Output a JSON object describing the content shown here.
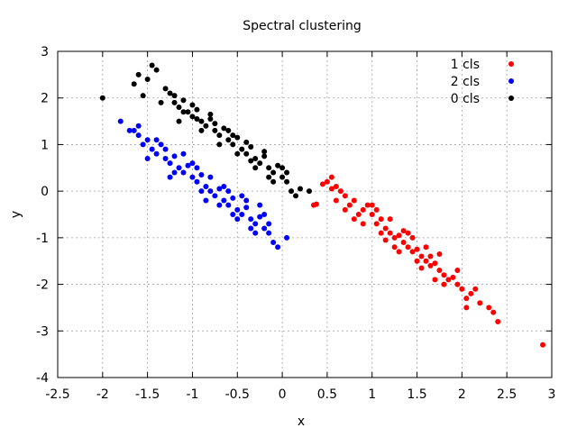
{
  "chart_data": {
    "type": "scatter",
    "title": "Spectral clustering",
    "xlabel": "x",
    "ylabel": "y",
    "xlim": [
      -2.5,
      3
    ],
    "ylim": [
      -4,
      3
    ],
    "xticks": [
      -2.5,
      -2,
      -1.5,
      -1,
      -0.5,
      0,
      0.5,
      1,
      1.5,
      2,
      2.5,
      3
    ],
    "xtick_labels": [
      "-2.5",
      "-2",
      "-1.5",
      "-1",
      "-0.5",
      "0",
      "0.5",
      "1",
      "1.5",
      "2",
      "2.5",
      "3"
    ],
    "yticks": [
      -4,
      -3,
      -2,
      -1,
      0,
      1,
      2,
      3
    ],
    "ytick_labels": [
      "-4",
      "-3",
      "-2",
      "-1",
      "0",
      "1",
      "2",
      "3"
    ],
    "grid": true,
    "legend_position": "top-right",
    "series": [
      {
        "name": "1 cls",
        "color": "#ff0000",
        "points": [
          [
            0.35,
            -0.3
          ],
          [
            0.38,
            -0.28
          ],
          [
            0.5,
            0.2
          ],
          [
            0.55,
            0.3
          ],
          [
            0.6,
            0.1
          ],
          [
            0.65,
            0.0
          ],
          [
            0.7,
            -0.1
          ],
          [
            0.75,
            -0.3
          ],
          [
            0.8,
            -0.2
          ],
          [
            0.85,
            -0.5
          ],
          [
            0.9,
            -0.4
          ],
          [
            0.95,
            -0.3
          ],
          [
            1.0,
            -0.5
          ],
          [
            1.05,
            -0.7
          ],
          [
            1.1,
            -0.6
          ],
          [
            1.15,
            -0.8
          ],
          [
            1.2,
            -0.9
          ],
          [
            1.25,
            -1.0
          ],
          [
            1.3,
            -0.95
          ],
          [
            1.35,
            -1.1
          ],
          [
            1.4,
            -1.2
          ],
          [
            1.45,
            -1.3
          ],
          [
            1.5,
            -1.25
          ],
          [
            1.55,
            -1.4
          ],
          [
            1.6,
            -1.5
          ],
          [
            1.65,
            -1.6
          ],
          [
            1.7,
            -1.55
          ],
          [
            1.75,
            -1.7
          ],
          [
            1.8,
            -1.8
          ],
          [
            1.85,
            -1.9
          ],
          [
            1.9,
            -1.85
          ],
          [
            1.95,
            -2.0
          ],
          [
            2.0,
            -2.1
          ],
          [
            2.05,
            -2.3
          ],
          [
            2.1,
            -2.2
          ],
          [
            2.2,
            -2.4
          ],
          [
            2.3,
            -2.5
          ],
          [
            2.35,
            -2.6
          ],
          [
            2.4,
            -2.8
          ],
          [
            2.9,
            -3.3
          ],
          [
            1.0,
            -0.3
          ],
          [
            1.1,
            -0.9
          ],
          [
            1.2,
            -0.6
          ],
          [
            1.3,
            -1.3
          ],
          [
            1.4,
            -0.9
          ],
          [
            1.5,
            -1.5
          ],
          [
            1.6,
            -1.2
          ],
          [
            1.7,
            -1.9
          ],
          [
            0.9,
            -0.7
          ],
          [
            0.8,
            -0.6
          ],
          [
            1.05,
            -0.4
          ],
          [
            1.25,
            -1.2
          ],
          [
            1.45,
            -1.0
          ],
          [
            1.65,
            -1.4
          ],
          [
            1.8,
            -2.0
          ],
          [
            1.95,
            -1.7
          ],
          [
            2.05,
            -2.5
          ],
          [
            2.15,
            -2.1
          ],
          [
            0.7,
            -0.4
          ],
          [
            0.6,
            -0.2
          ],
          [
            0.55,
            0.05
          ],
          [
            0.45,
            0.15
          ],
          [
            1.15,
            -1.05
          ],
          [
            1.35,
            -0.85
          ],
          [
            1.55,
            -1.65
          ],
          [
            1.75,
            -1.35
          ]
        ]
      },
      {
        "name": "2 cls",
        "color": "#0000ff",
        "points": [
          [
            -1.8,
            1.5
          ],
          [
            -1.65,
            1.3
          ],
          [
            -1.6,
            1.2
          ],
          [
            -1.55,
            1.0
          ],
          [
            -1.5,
            1.1
          ],
          [
            -1.45,
            0.9
          ],
          [
            -1.4,
            0.8
          ],
          [
            -1.35,
            1.0
          ],
          [
            -1.3,
            0.7
          ],
          [
            -1.25,
            0.6
          ],
          [
            -1.2,
            0.75
          ],
          [
            -1.15,
            0.5
          ],
          [
            -1.1,
            0.4
          ],
          [
            -1.05,
            0.55
          ],
          [
            -1.0,
            0.3
          ],
          [
            -0.95,
            0.2
          ],
          [
            -0.9,
            0.35
          ],
          [
            -0.85,
            0.1
          ],
          [
            -0.8,
            0.0
          ],
          [
            -0.75,
            -0.1
          ],
          [
            -0.7,
            0.05
          ],
          [
            -0.65,
            -0.2
          ],
          [
            -0.6,
            -0.3
          ],
          [
            -0.55,
            -0.15
          ],
          [
            -0.5,
            -0.4
          ],
          [
            -0.45,
            -0.5
          ],
          [
            -0.4,
            -0.35
          ],
          [
            -0.35,
            -0.6
          ],
          [
            -0.3,
            -0.7
          ],
          [
            -0.25,
            -0.55
          ],
          [
            -0.2,
            -0.8
          ],
          [
            -0.15,
            -0.9
          ],
          [
            -0.1,
            -1.1
          ],
          [
            -0.05,
            -1.2
          ],
          [
            0.05,
            -1.0
          ],
          [
            -1.5,
            0.7
          ],
          [
            -1.3,
            0.9
          ],
          [
            -1.2,
            0.4
          ],
          [
            -1.0,
            0.6
          ],
          [
            -0.9,
            0.0
          ],
          [
            -0.8,
            0.3
          ],
          [
            -0.7,
            -0.3
          ],
          [
            -0.6,
            0.0
          ],
          [
            -0.5,
            -0.6
          ],
          [
            -0.4,
            -0.2
          ],
          [
            -0.3,
            -0.9
          ],
          [
            -0.2,
            -0.5
          ],
          [
            -1.1,
            0.8
          ],
          [
            -1.4,
            1.1
          ],
          [
            -1.25,
            0.3
          ],
          [
            -0.95,
            0.5
          ],
          [
            -0.85,
            -0.2
          ],
          [
            -0.65,
            0.1
          ],
          [
            -0.55,
            -0.5
          ],
          [
            -0.45,
            -0.1
          ],
          [
            -0.35,
            -0.8
          ],
          [
            -0.25,
            -0.3
          ],
          [
            -0.15,
            -0.7
          ],
          [
            -1.7,
            1.3
          ],
          [
            -1.6,
            1.4
          ]
        ]
      },
      {
        "name": "0 cls",
        "color": "#000000",
        "points": [
          [
            -2.0,
            2.0
          ],
          [
            -1.6,
            2.5
          ],
          [
            -1.5,
            2.4
          ],
          [
            -1.45,
            2.7
          ],
          [
            -1.4,
            2.6
          ],
          [
            -1.55,
            2.05
          ],
          [
            -1.3,
            2.2
          ],
          [
            -1.25,
            2.1
          ],
          [
            -1.2,
            1.9
          ],
          [
            -1.15,
            1.8
          ],
          [
            -1.1,
            1.95
          ],
          [
            -1.05,
            1.7
          ],
          [
            -1.0,
            1.6
          ],
          [
            -0.95,
            1.75
          ],
          [
            -0.9,
            1.5
          ],
          [
            -0.85,
            1.4
          ],
          [
            -0.8,
            1.55
          ],
          [
            -0.75,
            1.3
          ],
          [
            -0.7,
            1.2
          ],
          [
            -0.65,
            1.35
          ],
          [
            -0.6,
            1.1
          ],
          [
            -0.55,
            1.0
          ],
          [
            -0.5,
            1.15
          ],
          [
            -0.45,
            0.9
          ],
          [
            -0.4,
            0.8
          ],
          [
            -0.35,
            0.95
          ],
          [
            -0.3,
            0.7
          ],
          [
            -0.25,
            0.6
          ],
          [
            -0.2,
            0.75
          ],
          [
            -0.15,
            0.5
          ],
          [
            -0.1,
            0.4
          ],
          [
            -0.05,
            0.55
          ],
          [
            0.0,
            0.3
          ],
          [
            0.05,
            0.2
          ],
          [
            0.1,
            0.0
          ],
          [
            0.15,
            -0.1
          ],
          [
            0.2,
            0.05
          ],
          [
            0.3,
            0.0
          ],
          [
            -1.2,
            2.05
          ],
          [
            -1.1,
            1.7
          ],
          [
            -1.0,
            1.85
          ],
          [
            -0.9,
            1.3
          ],
          [
            -0.8,
            1.65
          ],
          [
            -0.7,
            1.0
          ],
          [
            -0.6,
            1.3
          ],
          [
            -0.5,
            0.8
          ],
          [
            -0.4,
            1.05
          ],
          [
            -0.3,
            0.5
          ],
          [
            -0.2,
            0.85
          ],
          [
            -0.1,
            0.2
          ],
          [
            0.0,
            0.5
          ],
          [
            -1.35,
            1.9
          ],
          [
            -1.15,
            1.5
          ],
          [
            -0.95,
            1.55
          ],
          [
            -0.75,
            1.45
          ],
          [
            -0.55,
            1.2
          ],
          [
            -0.35,
            0.65
          ],
          [
            -0.15,
            0.3
          ],
          [
            0.05,
            0.4
          ],
          [
            -1.65,
            2.3
          ]
        ]
      }
    ]
  }
}
